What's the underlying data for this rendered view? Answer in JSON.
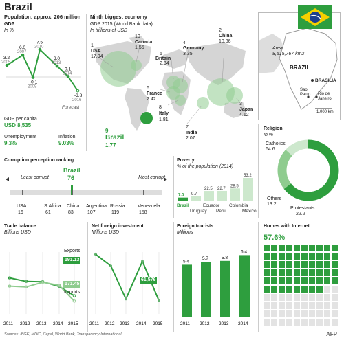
{
  "title": "Brazil",
  "population": "Population: approx. 206 million",
  "gdp": {
    "title": "GDP",
    "unit": "In %",
    "years": [
      "2005",
      "2007",
      "2009",
      "2010",
      "2013",
      "2014",
      "2016"
    ],
    "values": [
      3.2,
      6.0,
      -0.1,
      7.5,
      3.0,
      0.1,
      -3.8
    ],
    "labels": [
      "3.2",
      "6.0",
      "-0.1",
      "7.5",
      "3.0",
      "0.1",
      "-3.8"
    ],
    "forecast_label": "Forecast"
  },
  "stats": {
    "gdp_capita_label": "GDP per capita",
    "gdp_capita_value": "USD 8,535",
    "unemployment_label": "Unemployment",
    "unemployment_value": "9.3%",
    "inflation_label": "Inflation",
    "inflation_value": "9.03%"
  },
  "economy": {
    "title": "Ninth biggest economy",
    "subtitle": "GDP 2015 (World Bank data)",
    "unit": "In trillions of USD",
    "countries": [
      {
        "rank": "1",
        "name": "USA",
        "value": "17.94"
      },
      {
        "rank": "2",
        "name": "China",
        "value": "10.86"
      },
      {
        "rank": "3",
        "name": "Japan",
        "value": "4.12"
      },
      {
        "rank": "4",
        "name": "Germany",
        "value": "3.35"
      },
      {
        "rank": "5",
        "name": "Britain",
        "value": "2.84"
      },
      {
        "rank": "6",
        "name": "France",
        "value": "2.42"
      },
      {
        "rank": "7",
        "name": "India",
        "value": "2.07"
      },
      {
        "rank": "8",
        "name": "Italy",
        "value": "1.81"
      },
      {
        "rank": "10",
        "name": "Canada",
        "value": "1.55"
      }
    ],
    "brazil": {
      "rank": "9",
      "name": "Brazil",
      "value": "1.77"
    }
  },
  "map": {
    "area_label": "Area:",
    "area_value": "8,515,767 km2",
    "country": "BRAZIL",
    "capital": "BRASILIA",
    "cities": [
      "Sao Paulo",
      "Rio de Janeiro"
    ],
    "scale": "1,000 km"
  },
  "corruption": {
    "title": "Corruption perception ranking",
    "left_label": "Least corrupt",
    "right_label": "Most corrupt",
    "brazil_name": "Brazil",
    "brazil_rank": "76",
    "countries": [
      {
        "name": "USA",
        "rank": "16"
      },
      {
        "name": "S.Africa",
        "rank": "61"
      },
      {
        "name": "China",
        "rank": "83"
      },
      {
        "name": "Argentina",
        "rank": "107"
      },
      {
        "name": "Russia",
        "rank": "119"
      },
      {
        "name": "Venezuela",
        "rank": "158"
      }
    ]
  },
  "poverty": {
    "title": "Poverty",
    "unit": "% of the population (2014)",
    "countries": [
      "Brazil",
      "Uruguay",
      "Ecuador",
      "Peru",
      "Colombia",
      "Mexico"
    ],
    "value_labels": [
      "7.0",
      "9.7",
      "22.5",
      "22.7",
      "28.5",
      "53.2"
    ]
  },
  "religion": {
    "title": "Religion",
    "unit": "In %",
    "catholics_label": "Catholics",
    "catholics_value": "64.6",
    "others_label": "Others",
    "others_value": "13.2",
    "protestants_label": "Protestants",
    "protestants_value": "22.2"
  },
  "trade": {
    "title": "Trade balance",
    "unit": "Billions USD",
    "exports_label": "Exports",
    "exports_value": "191.13",
    "imports_label": "Imports",
    "imports_value": "171.45",
    "years": [
      "2011",
      "2012",
      "2013",
      "2014",
      "2015"
    ]
  },
  "fdi": {
    "title": "Net foreign investment",
    "unit": "Millions USD",
    "value": "61,576",
    "years": [
      "2011",
      "2012",
      "2013",
      "2014",
      "2015"
    ]
  },
  "tourists": {
    "title": "Foreign tourists",
    "unit": "Millions",
    "years": [
      "2011",
      "2012",
      "2013",
      "2014"
    ],
    "value_labels": [
      "5.4",
      "5.7",
      "5.8",
      "6.4"
    ]
  },
  "internet": {
    "title": "Homes with Internet",
    "value": "57.6%"
  },
  "sources": "Sources: IBGE, MDIC, Cepal, World Bank, Transparency International",
  "credit": "AFP",
  "colors": {
    "green": "#2e9e3e",
    "light_green": "#8fcc8f",
    "pale_green": "#cde8cd",
    "gray_square": "#e3e3e3"
  },
  "chart_data": [
    {
      "type": "line",
      "title": "GDP",
      "ylabel": "In %",
      "x": [
        "2005",
        "2007",
        "2009",
        "2010",
        "2013",
        "2014",
        "2016"
      ],
      "series": [
        {
          "values": [
            3.2,
            6.0,
            -0.1,
            7.5,
            3.0,
            0.1,
            -3.8
          ]
        }
      ]
    },
    {
      "type": "bar",
      "title": "Ninth biggest economy",
      "ylabel": "In trillions of USD",
      "categories": [
        "USA",
        "China",
        "Japan",
        "Germany",
        "Britain",
        "France",
        "India",
        "Italy",
        "Brazil",
        "Canada"
      ],
      "values": [
        17.94,
        10.86,
        4.12,
        3.35,
        2.84,
        2.42,
        2.07,
        1.81,
        1.77,
        1.55
      ]
    },
    {
      "type": "bar",
      "title": "Poverty",
      "ylabel": "% of the population (2014)",
      "categories": [
        "Brazil",
        "Uruguay",
        "Ecuador",
        "Peru",
        "Colombia",
        "Mexico"
      ],
      "values": [
        7.0,
        9.7,
        22.5,
        22.7,
        28.5,
        53.2
      ],
      "ylim": [
        0,
        60
      ]
    },
    {
      "type": "pie",
      "title": "Religion",
      "categories": [
        "Catholics",
        "Protestants",
        "Others"
      ],
      "values": [
        64.6,
        22.2,
        13.2
      ]
    },
    {
      "type": "line",
      "title": "Trade balance",
      "ylabel": "Billions USD",
      "x": [
        "2011",
        "2012",
        "2013",
        "2014",
        "2015"
      ],
      "series": [
        {
          "name": "Exports",
          "values": [
            256,
            243,
            242,
            225,
            191.13
          ]
        },
        {
          "name": "Imports",
          "values": [
            226,
            223,
            240,
            229,
            171.45
          ]
        }
      ]
    },
    {
      "type": "line",
      "title": "Net foreign investment",
      "ylabel": "Millions USD",
      "x": [
        "2011",
        "2012",
        "2013",
        "2014",
        "2015"
      ],
      "series": [
        {
          "values": [
            102000,
            92000,
            63000,
            96000,
            61576
          ]
        }
      ],
      "ylim": [
        50000,
        110000
      ]
    },
    {
      "type": "bar",
      "title": "Foreign tourists",
      "ylabel": "Millions",
      "categories": [
        "2011",
        "2012",
        "2013",
        "2014"
      ],
      "values": [
        5.4,
        5.7,
        5.8,
        6.4
      ],
      "ylim": [
        0,
        7
      ]
    },
    {
      "type": "table",
      "title": "Homes with Internet",
      "values": [
        57.6
      ]
    }
  ]
}
